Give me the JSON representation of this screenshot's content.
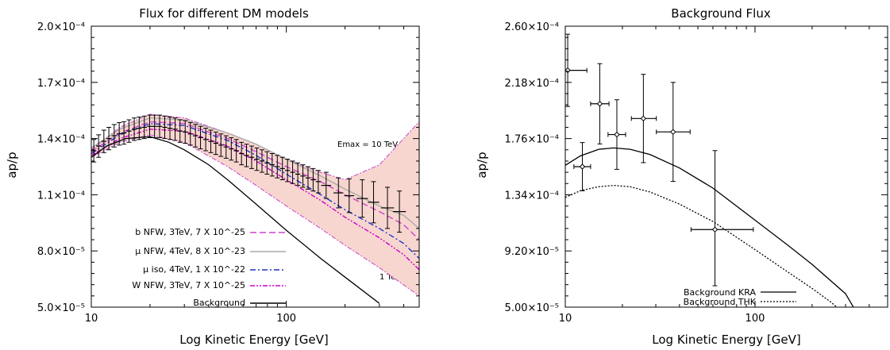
{
  "chart_data": [
    {
      "type": "line",
      "title": "Flux for different DM models",
      "xlabel": "Log Kinetic Energy [GeV]",
      "ylabel": "ap/p",
      "xscale": "log",
      "xlim": [
        10,
        480
      ],
      "ylim": [
        5e-05,
        0.0002
      ],
      "x_tick_values": [
        10,
        100
      ],
      "x_tick_labels": [
        "10",
        "100"
      ],
      "y_tick_values": [
        5e-05,
        8e-05,
        0.00011,
        0.00014,
        0.00017,
        0.0002
      ],
      "y_tick_labels": [
        "5.0×10⁻⁵",
        "8.0×10⁻⁵",
        "1.1×10⁻⁴",
        "1.4×10⁻⁴",
        "1.7×10⁻⁴",
        "2.0×10⁻⁴"
      ],
      "annotations": [
        "Emax = 10 TeV",
        "1 TeV"
      ],
      "legend_position": "bottom-left",
      "band": {
        "color": "#f7d6cf",
        "x": [
          10,
          14,
          20,
          30,
          50,
          70,
          100,
          150,
          200,
          300,
          480
        ],
        "upper": [
          0.000134,
          0.000146,
          0.000153,
          0.000151,
          0.000143,
          0.000137,
          0.000129,
          0.000122,
          0.000118,
          0.000126,
          0.000149
        ],
        "lower": [
          0.00013,
          0.000138,
          0.000142,
          0.000138,
          0.000125,
          0.000115,
          0.000104,
          9.2e-05,
          8.3e-05,
          7.1e-05,
          5.6e-05
        ]
      },
      "series": [
        {
          "name": "b NFW, 3TeV, 7 X 10^-25",
          "color": "#cc44cc",
          "dash": "8,4",
          "x": [
            10,
            14,
            20,
            30,
            50,
            70,
            100,
            150,
            200,
            300,
            400,
            480
          ],
          "y": [
            0.000133,
            0.000143,
            0.000149,
            0.000148,
            0.00014,
            0.000133,
            0.000125,
            0.000117,
            0.00011,
            0.000101,
            9.4e-05,
            8.6e-05
          ]
        },
        {
          "name": "μ NFW, 4TeV, 8 X 10^-23",
          "color": "#aaaaaa",
          "dash": "",
          "x": [
            10,
            14,
            20,
            30,
            50,
            70,
            100,
            150,
            200,
            300,
            400,
            480
          ],
          "y": [
            0.000135,
            0.000145,
            0.000151,
            0.00015,
            0.000143,
            0.000137,
            0.000129,
            0.00012,
            0.000113,
            0.000104,
            9.9e-05,
            9.2e-05
          ]
        },
        {
          "name": "μ iso, 4TeV, 1 X 10^-22",
          "color": "#2233cc",
          "dash": "7,3,2,3",
          "x": [
            10,
            14,
            20,
            30,
            50,
            70,
            100,
            150,
            200,
            300,
            400,
            480
          ],
          "y": [
            0.000132,
            0.000142,
            0.000148,
            0.000147,
            0.000139,
            0.000131,
            0.000121,
            0.00011,
            0.000102,
            9.2e-05,
            8.4e-05,
            7.6e-05
          ]
        },
        {
          "name": "W NFW, 3TeV, 7 X 10^-25",
          "color": "#cc00cc",
          "dash": "6,2,2,2,2,2",
          "x": [
            10,
            14,
            20,
            30,
            50,
            70,
            100,
            150,
            200,
            300,
            400,
            480
          ],
          "y": [
            0.000131,
            0.00014,
            0.000145,
            0.000144,
            0.000136,
            0.000128,
            0.000118,
            0.000107,
            9.8e-05,
            8.7e-05,
            7.8e-05,
            7e-05
          ]
        },
        {
          "name": "Background",
          "color": "#000000",
          "dash": "",
          "x": [
            10,
            12,
            15,
            20,
            25,
            30,
            40,
            50,
            70,
            100,
            150,
            200,
            300
          ],
          "y": [
            0.00013,
            0.000136,
            0.00014,
            0.000141,
            0.000138,
            0.000134,
            0.000126,
            0.000118,
            0.000105,
            9.1e-05,
            7.6e-05,
            6.6e-05,
            5.2e-05
          ]
        }
      ],
      "points": {
        "x": [
          10.3,
          10.9,
          11.6,
          12.3,
          13.1,
          13.9,
          14.7,
          15.6,
          16.6,
          17.6,
          18.7,
          19.9,
          21.1,
          22.4,
          23.8,
          25.3,
          26.9,
          28.5,
          30.3,
          32.2,
          34.2,
          36.3,
          38.6,
          41.0,
          43.5,
          46.2,
          49.1,
          52.2,
          55.4,
          58.9,
          62.5,
          66.4,
          70.6,
          75.0,
          79.6,
          84.6,
          89.9,
          95.5,
          101.4,
          107.7,
          114.5,
          121.6,
          129.2,
          137.2,
          145.8,
          160,
          185,
          210,
          245,
          280,
          330,
          380
        ],
        "y": [
          0.0001335,
          0.000136,
          0.0001385,
          0.00014,
          0.0001415,
          0.0001425,
          0.000143,
          0.000144,
          0.000145,
          0.0001455,
          0.000146,
          0.0001465,
          0.0001465,
          0.0001465,
          0.000146,
          0.0001455,
          0.000145,
          0.000144,
          0.0001435,
          0.0001425,
          0.0001415,
          0.0001405,
          0.0001395,
          0.0001385,
          0.0001375,
          0.0001365,
          0.0001355,
          0.0001345,
          0.0001335,
          0.000132,
          0.000131,
          0.00013,
          0.000129,
          0.000128,
          0.000127,
          0.000126,
          0.000125,
          0.000124,
          0.000123,
          0.000122,
          0.000121,
          0.00012,
          0.000119,
          0.000118,
          0.000117,
          0.000115,
          0.000111,
          0.0001095,
          0.000108,
          0.000106,
          0.000103,
          0.000101
        ],
        "err": [
          6e-06,
          6e-06,
          6e-06,
          6e-06,
          6e-06,
          6e-06,
          6e-06,
          6e-06,
          6e-06,
          6e-06,
          6e-06,
          6e-06,
          6e-06,
          6e-06,
          6e-06,
          6e-06,
          6e-06,
          6e-06,
          6e-06,
          6e-06,
          6e-06,
          6e-06,
          6e-06,
          6e-06,
          6e-06,
          6e-06,
          6e-06,
          6e-06,
          6e-06,
          6e-06,
          6e-06,
          6e-06,
          6e-06,
          6e-06,
          6e-06,
          6e-06,
          6e-06,
          6e-06,
          6e-06,
          6e-06,
          6e-06,
          6e-06,
          6e-06,
          6e-06,
          6e-06,
          7e-06,
          8e-06,
          9e-06,
          1e-05,
          1.1e-05,
          1.1e-05,
          1.1e-05
        ],
        "xerr_factor": [
          1.03,
          1.03,
          1.03,
          1.03,
          1.03,
          1.03,
          1.03,
          1.03,
          1.03,
          1.03,
          1.03,
          1.03,
          1.03,
          1.03,
          1.03,
          1.03,
          1.03,
          1.03,
          1.03,
          1.03,
          1.03,
          1.03,
          1.03,
          1.03,
          1.03,
          1.03,
          1.03,
          1.03,
          1.03,
          1.03,
          1.03,
          1.03,
          1.03,
          1.03,
          1.03,
          1.03,
          1.03,
          1.03,
          1.03,
          1.03,
          1.03,
          1.03,
          1.03,
          1.03,
          1.03,
          1.06,
          1.06,
          1.06,
          1.07,
          1.07,
          1.08,
          1.08
        ]
      }
    },
    {
      "type": "line",
      "title": "Background Flux",
      "xlabel": "Log Kinetic Energy [GeV]",
      "ylabel": "ap/p",
      "xscale": "log",
      "xlim": [
        10,
        500
      ],
      "ylim": [
        5e-05,
        0.00026
      ],
      "x_tick_values": [
        10,
        100
      ],
      "x_tick_labels": [
        "10",
        "100"
      ],
      "y_tick_values": [
        5e-05,
        9.2e-05,
        0.000134,
        0.000176,
        0.000218,
        0.00026
      ],
      "y_tick_labels": [
        "5.00×10⁻⁵",
        "9.20×10⁻⁵",
        "1.34×10⁻⁴",
        "1.76×10⁻⁴",
        "2.18×10⁻⁴",
        "2.60×10⁻⁴"
      ],
      "legend_position": "bottom-right",
      "series": [
        {
          "name": "Background KRA",
          "color": "#000000",
          "dash": "",
          "x": [
            10,
            12,
            15,
            18,
            22,
            28,
            40,
            60,
            100,
            150,
            200,
            300,
            330
          ],
          "y": [
            0.000156,
            0.000163,
            0.000168,
            0.000169,
            0.000168,
            0.000164,
            0.000154,
            0.000139,
            0.000115,
            9.6e-05,
            8.2e-05,
            6e-05,
            5e-05
          ]
        },
        {
          "name": "Background THK",
          "color": "#000000",
          "dash": "2,2",
          "x": [
            10,
            12,
            15,
            18,
            22,
            28,
            40,
            60,
            100,
            150,
            200,
            250,
            270
          ],
          "y": [
            0.000132,
            0.000137,
            0.00014,
            0.000141,
            0.00014,
            0.000136,
            0.000127,
            0.000114,
            9.3e-05,
            7.6e-05,
            6.4e-05,
            5.4e-05,
            5e-05
          ]
        }
      ],
      "points": {
        "x": [
          10.3,
          12.3,
          15.2,
          18.7,
          25.8,
          37.0,
          61.5
        ],
        "y": [
          0.000227,
          0.000155,
          0.000202,
          0.000179,
          0.000191,
          0.000181,
          0.000108
        ],
        "yerr_up": [
          2.7e-05,
          1.8e-05,
          3e-05,
          2.6e-05,
          3.3e-05,
          3.7e-05,
          5.9e-05
        ],
        "yerr_dn": [
          2.7e-05,
          1.8e-05,
          3e-05,
          2.6e-05,
          3.3e-05,
          3.7e-05,
          4.2e-05
        ],
        "xlo": [
          10.0,
          11.1,
          13.6,
          16.8,
          22.3,
          30.2,
          46.0
        ],
        "xhi": [
          13.0,
          13.6,
          17.0,
          20.8,
          30.2,
          45.5,
          98.0
        ]
      }
    }
  ]
}
